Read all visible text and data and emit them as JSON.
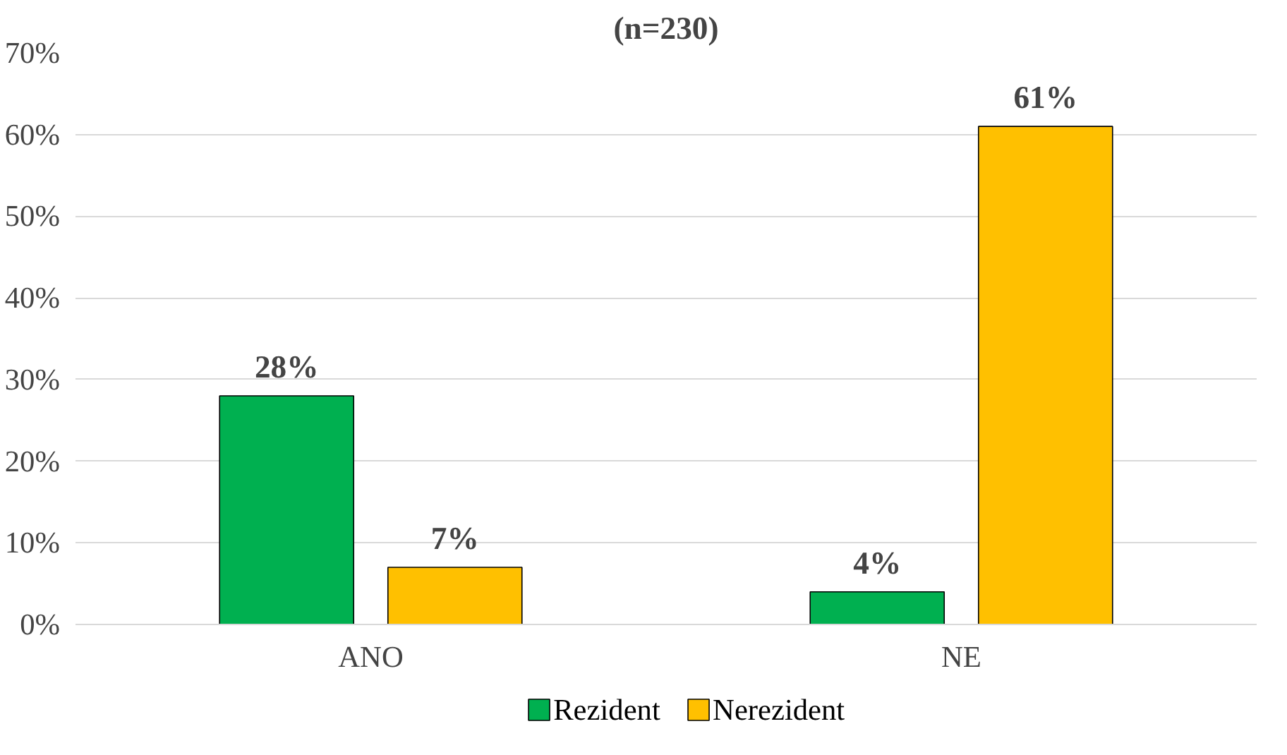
{
  "chart_data": {
    "type": "bar",
    "title": "(n=230)",
    "categories": [
      "ANO",
      "NE"
    ],
    "series": [
      {
        "name": "Rezident",
        "color": "#00b050",
        "values": [
          28,
          4
        ],
        "value_labels": [
          "28%",
          "4%"
        ]
      },
      {
        "name": "Nerezident",
        "color": "#ffc000",
        "values": [
          7,
          61
        ],
        "value_labels": [
          "7%",
          "61%"
        ]
      }
    ],
    "ylim": [
      0,
      70
    ],
    "yticks": [
      {
        "value": 0,
        "label": "0%"
      },
      {
        "value": 10,
        "label": "10%"
      },
      {
        "value": 20,
        "label": "20%"
      },
      {
        "value": 30,
        "label": "30%"
      },
      {
        "value": 40,
        "label": "40%"
      },
      {
        "value": 50,
        "label": "50%"
      },
      {
        "value": 60,
        "label": "60%"
      },
      {
        "value": 70,
        "label": "70%"
      }
    ],
    "grid": "y",
    "legend": "bottom"
  }
}
